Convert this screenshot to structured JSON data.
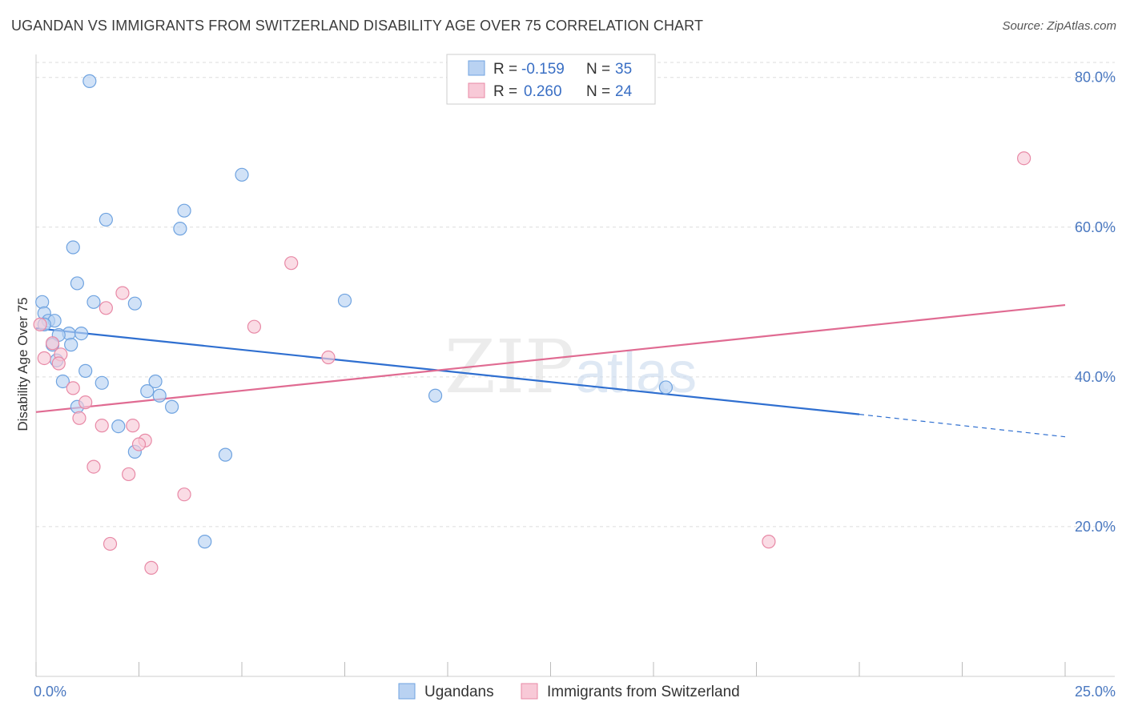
{
  "title": "UGANDAN VS IMMIGRANTS FROM SWITZERLAND DISABILITY AGE OVER 75 CORRELATION CHART",
  "source": "Source: ZipAtlas.com",
  "watermark": {
    "zip": "ZIP",
    "atlas": "atlas"
  },
  "chart_data": {
    "type": "scatter",
    "ylabel": "Disability Age Over 75",
    "xlim": [
      0,
      25
    ],
    "ylim": [
      0,
      82
    ],
    "x_tick_labels": [
      "0.0%",
      "25.0%"
    ],
    "y_ticks": [
      20,
      40,
      60,
      80
    ],
    "y_tick_labels": [
      "20.0%",
      "40.0%",
      "60.0%",
      "80.0%"
    ],
    "grid": "horizontal-dashed",
    "legend_position": "top-center",
    "legend": [
      {
        "r_label": "R =",
        "r_value": "-0.159",
        "n_label": "N =",
        "n_value": "35"
      },
      {
        "r_label": "R =",
        "r_value": "0.260",
        "n_label": "N =",
        "n_value": "24"
      }
    ],
    "series": [
      {
        "name": "Ugandans",
        "color": "#6fa3e0",
        "fill": "#b9d2f2",
        "line_color": "#2f6fd0",
        "trend": {
          "x0": 0,
          "y0": 46.5,
          "x1": 20,
          "y1": 35.0,
          "dash_x1": 25,
          "dash_y1": 32.0
        },
        "points": [
          [
            1.3,
            79.5
          ],
          [
            5.0,
            67.0
          ],
          [
            3.6,
            62.2
          ],
          [
            1.7,
            61.0
          ],
          [
            3.5,
            59.8
          ],
          [
            0.9,
            57.3
          ],
          [
            1.0,
            52.5
          ],
          [
            0.15,
            50.0
          ],
          [
            1.4,
            50.0
          ],
          [
            2.4,
            49.8
          ],
          [
            7.5,
            50.2
          ],
          [
            0.2,
            48.5
          ],
          [
            0.3,
            47.5
          ],
          [
            0.45,
            47.5
          ],
          [
            0.2,
            47.0
          ],
          [
            0.8,
            45.8
          ],
          [
            1.1,
            45.8
          ],
          [
            0.55,
            45.6
          ],
          [
            0.85,
            44.3
          ],
          [
            0.4,
            44.3
          ],
          [
            0.5,
            42.2
          ],
          [
            1.2,
            40.8
          ],
          [
            0.65,
            39.4
          ],
          [
            1.6,
            39.2
          ],
          [
            2.9,
            39.4
          ],
          [
            2.7,
            38.1
          ],
          [
            3.0,
            37.5
          ],
          [
            9.7,
            37.5
          ],
          [
            15.3,
            38.6
          ],
          [
            1.0,
            36.0
          ],
          [
            3.3,
            36.0
          ],
          [
            2.0,
            33.4
          ],
          [
            2.4,
            30.0
          ],
          [
            4.6,
            29.6
          ],
          [
            4.1,
            18.0
          ]
        ]
      },
      {
        "name": "Immigrants from Switzerland",
        "color": "#e889a6",
        "fill": "#f8c9d7",
        "line_color": "#e06b92",
        "trend": {
          "x0": 0,
          "y0": 35.3,
          "x1": 25,
          "y1": 49.6
        },
        "points": [
          [
            24.0,
            69.2
          ],
          [
            6.2,
            55.2
          ],
          [
            2.1,
            51.2
          ],
          [
            1.7,
            49.2
          ],
          [
            5.3,
            46.7
          ],
          [
            0.1,
            47.0
          ],
          [
            0.4,
            44.5
          ],
          [
            0.6,
            43.0
          ],
          [
            7.1,
            42.6
          ],
          [
            0.2,
            42.5
          ],
          [
            0.55,
            41.8
          ],
          [
            0.9,
            38.5
          ],
          [
            1.2,
            36.6
          ],
          [
            1.05,
            34.5
          ],
          [
            1.6,
            33.5
          ],
          [
            2.35,
            33.5
          ],
          [
            2.65,
            31.5
          ],
          [
            2.5,
            31.0
          ],
          [
            1.4,
            28.0
          ],
          [
            2.25,
            27.0
          ],
          [
            3.6,
            24.3
          ],
          [
            17.8,
            18.0
          ],
          [
            1.8,
            17.7
          ],
          [
            2.8,
            14.5
          ]
        ]
      }
    ]
  }
}
